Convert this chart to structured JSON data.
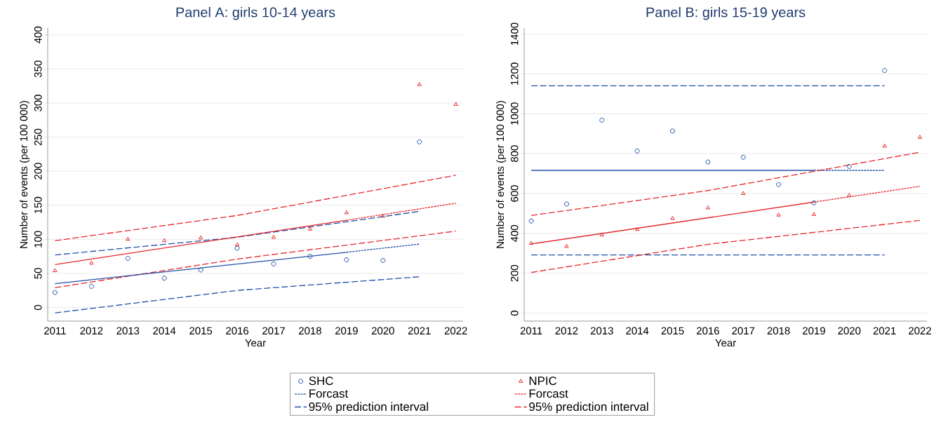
{
  "chart_data": [
    {
      "type": "scatter",
      "title": "Panel A: girls 10-14 years",
      "xlabel": "Year",
      "ylabel": "Number of events (per 100 000)",
      "x": [
        2011,
        2012,
        2013,
        2014,
        2015,
        2016,
        2017,
        2018,
        2019,
        2020,
        2021,
        2022
      ],
      "xlim": [
        2010.8,
        2022.2
      ],
      "xticks": [
        2011,
        2012,
        2013,
        2014,
        2015,
        2016,
        2017,
        2018,
        2019,
        2020,
        2021,
        2022
      ],
      "ylim": [
        -20,
        410
      ],
      "yticks": [
        0,
        50,
        100,
        150,
        200,
        250,
        300,
        350,
        400
      ],
      "grid": "y",
      "legend": "bottom",
      "series": [
        {
          "name": "SHC",
          "type": "scatter",
          "marker": "circle",
          "color": "#1f4fa8",
          "values": [
            22,
            31,
            72,
            43,
            55,
            87,
            64,
            75,
            70,
            69,
            243,
            null
          ]
        },
        {
          "name": "NPIC",
          "type": "scatter",
          "marker": "triangle",
          "color": "#e8262a",
          "values": [
            54,
            65,
            100,
            98,
            102,
            92,
            103,
            115,
            139,
            134,
            327,
            298
          ]
        },
        {
          "name": "Forcast",
          "type": "line",
          "line_style": "dotted",
          "color": "#1f4fa8",
          "x": [
            2019,
            2021
          ],
          "values": [
            81,
            93
          ]
        },
        {
          "name": "Forcast",
          "type": "line",
          "line_style": "dotted",
          "color": "#e8262a",
          "x": [
            2019,
            2022
          ],
          "values": [
            128,
            153
          ]
        },
        {
          "name": "95% prediction interval",
          "type": "line",
          "line_style": "dashed",
          "color": "#1f4fa8",
          "x": [
            2011,
            2016,
            2021
          ],
          "values": [
            77,
            103,
            141
          ]
        },
        {
          "name": "95% prediction interval",
          "type": "line",
          "line_style": "dashed",
          "color": "#e8262a",
          "x": [
            2011,
            2016,
            2022
          ],
          "values": [
            98,
            135,
            194
          ]
        },
        {
          "type": "line",
          "line_style": "dashed",
          "color": "#1f4fa8",
          "x": [
            2011,
            2016,
            2021
          ],
          "values": [
            -8,
            25,
            45
          ]
        },
        {
          "type": "line",
          "line_style": "dashed",
          "color": "#e8262a",
          "x": [
            2011,
            2016,
            2022
          ],
          "values": [
            29,
            71,
            112
          ]
        },
        {
          "type": "line",
          "line_style": "solid",
          "color": "#1f4fa8",
          "x": [
            2011,
            2019
          ],
          "values": [
            35,
            81
          ]
        },
        {
          "type": "line",
          "line_style": "solid",
          "color": "#e8262a",
          "x": [
            2011,
            2019
          ],
          "values": [
            63,
            128
          ]
        }
      ]
    },
    {
      "type": "scatter",
      "title": "Panel B: girls 15-19 years",
      "xlabel": "Year",
      "ylabel": "Number of events (per 100 000)",
      "x": [
        2011,
        2012,
        2013,
        2014,
        2015,
        2016,
        2017,
        2018,
        2019,
        2020,
        2021,
        2022
      ],
      "xlim": [
        2010.8,
        2022.2
      ],
      "xticks": [
        2011,
        2012,
        2013,
        2014,
        2015,
        2016,
        2017,
        2018,
        2019,
        2020,
        2021,
        2022
      ],
      "ylim": [
        -40,
        1430
      ],
      "yticks": [
        0,
        200,
        400,
        600,
        800,
        1000,
        1200,
        1400
      ],
      "grid": "y",
      "series": [
        {
          "type": "scatter",
          "marker": "circle",
          "color": "#1f4fa8",
          "values": [
            462,
            547,
            968,
            813,
            913,
            758,
            782,
            645,
            553,
            736,
            1217,
            null
          ]
        },
        {
          "type": "scatter",
          "marker": "triangle",
          "color": "#e8262a",
          "values": [
            350,
            335,
            392,
            420,
            475,
            528,
            600,
            492,
            495,
            590,
            838,
            882
          ]
        },
        {
          "type": "line",
          "line_style": "dotted",
          "color": "#1f4fa8",
          "x": [
            2019,
            2021
          ],
          "values": [
            716,
            716
          ]
        },
        {
          "type": "line",
          "line_style": "dotted",
          "color": "#e8262a",
          "x": [
            2019,
            2022
          ],
          "values": [
            557,
            636
          ]
        },
        {
          "type": "line",
          "line_style": "dashed",
          "color": "#1f4fa8",
          "x": [
            2011,
            2021
          ],
          "values": [
            1140,
            1140
          ]
        },
        {
          "type": "line",
          "line_style": "dashed",
          "color": "#e8262a",
          "x": [
            2011,
            2016,
            2022
          ],
          "values": [
            490,
            615,
            807
          ]
        },
        {
          "type": "line",
          "line_style": "dashed",
          "color": "#1f4fa8",
          "x": [
            2011,
            2021
          ],
          "values": [
            292,
            292
          ]
        },
        {
          "type": "line",
          "line_style": "dashed",
          "color": "#e8262a",
          "x": [
            2011,
            2016,
            2022
          ],
          "values": [
            204,
            345,
            465
          ]
        },
        {
          "type": "line",
          "line_style": "solid",
          "color": "#1f4fa8",
          "x": [
            2011,
            2019
          ],
          "values": [
            716,
            716
          ]
        },
        {
          "type": "line",
          "line_style": "solid",
          "color": "#e8262a",
          "x": [
            2011,
            2019
          ],
          "values": [
            347,
            557
          ]
        }
      ]
    }
  ]
}
